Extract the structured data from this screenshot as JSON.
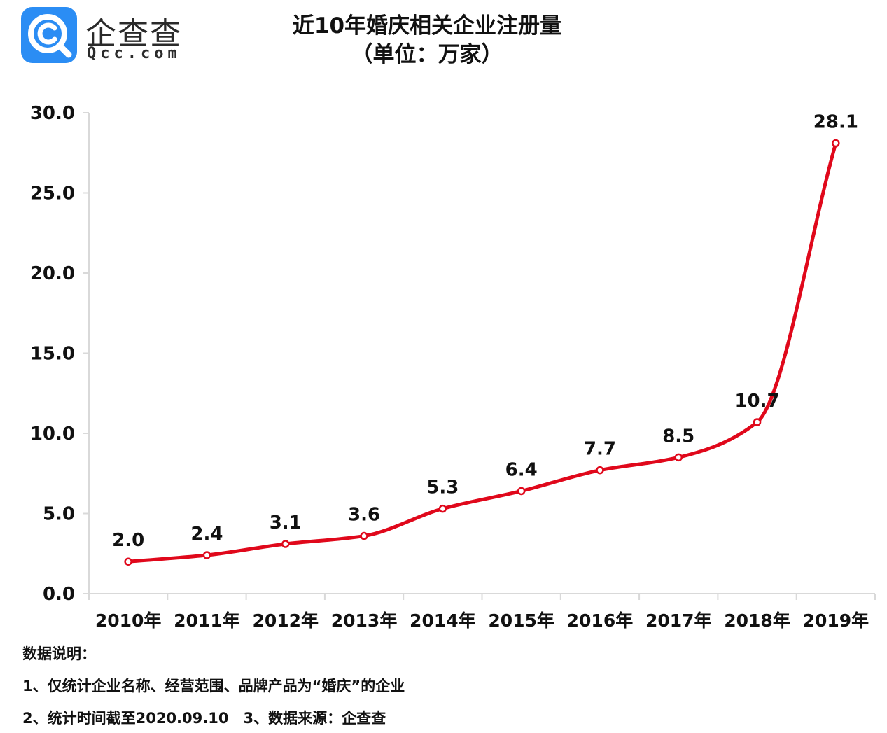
{
  "brand": {
    "name_cn": "企查查",
    "name_en": "Qcc.com",
    "tile_color": "#2b8df4"
  },
  "chart_data": {
    "type": "line",
    "title": "近10年婚庆相关企业注册量",
    "subtitle": "（单位：万家）",
    "categories": [
      "2010年",
      "2011年",
      "2012年",
      "2013年",
      "2014年",
      "2015年",
      "2016年",
      "2017年",
      "2018年",
      "2019年"
    ],
    "values": [
      2.0,
      2.4,
      3.1,
      3.6,
      5.3,
      6.4,
      7.7,
      8.5,
      10.7,
      28.1
    ],
    "value_labels": [
      "2.0",
      "2.4",
      "3.1",
      "3.6",
      "5.3",
      "6.4",
      "7.7",
      "8.5",
      "10.7",
      "28.1"
    ],
    "yticks": [
      "0.0",
      "5.0",
      "10.0",
      "15.0",
      "20.0",
      "25.0",
      "30.0"
    ],
    "ylim": [
      0,
      30
    ],
    "xlabel": "",
    "ylabel": "",
    "grid": false,
    "line_color": "#e0081b",
    "smooth": true
  },
  "notes": {
    "heading": "数据说明：",
    "line1": "1、仅统计企业名称、经营范围、品牌产品为“婚庆”的企业",
    "line2": "2、统计时间截至2020.09.10　3、数据来源：企查查"
  }
}
